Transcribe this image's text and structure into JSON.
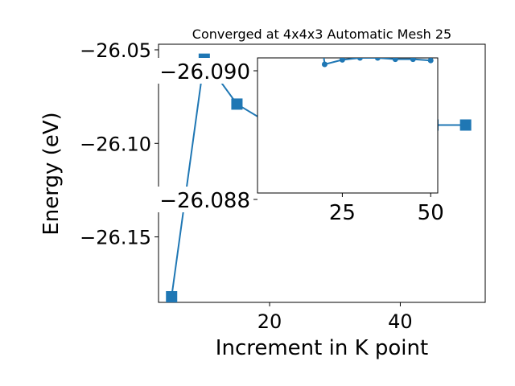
{
  "chart_data": [
    {
      "type": "line",
      "title": "Converged at 4x4x3 Automatic Mesh 25",
      "xlabel": "Increment in K point",
      "ylabel": "Energy (eV)",
      "xlim": [
        3,
        53
      ],
      "ylim": [
        -26.185,
        -26.047
      ],
      "x_ticks": [
        20,
        40
      ],
      "y_ticks": [
        -26.05,
        -26.1,
        -26.15
      ],
      "y_tick_labels": [
        "−26.05",
        "−26.10",
        "−26.15"
      ],
      "grid": false,
      "legend": "none",
      "series": [
        {
          "color": "#1f77b4",
          "marker": "square",
          "x": [
            5,
            10,
            15,
            20,
            25,
            30,
            35,
            40,
            45,
            50
          ],
          "y": [
            -26.182,
            -26.055,
            -26.079,
            -26.0895,
            -26.0902,
            -26.0903,
            -26.0903,
            -26.0902,
            -26.0902,
            -26.0902
          ]
        }
      ]
    },
    {
      "type": "line",
      "title": "",
      "xlabel": "",
      "ylabel": "",
      "inset": true,
      "xlim": [
        1,
        52
      ],
      "ylim": [
        -26.0881,
        -26.0902
      ],
      "x_ticks": [
        25,
        50
      ],
      "y_ticks": [
        -26.09,
        -26.088
      ],
      "y_tick_labels": [
        "−26.090",
        "−26.088"
      ],
      "grid": false,
      "legend": "none",
      "series": [
        {
          "color": "#1f77b4",
          "marker": "circle",
          "x": [
            20,
            25,
            30,
            35,
            40,
            45,
            50
          ],
          "y": [
            -26.0901,
            -26.09017,
            -26.0902,
            -26.0902,
            -26.09018,
            -26.09018,
            -26.09016
          ],
          "offscale_top": [
            19.5
          ]
        }
      ]
    }
  ]
}
